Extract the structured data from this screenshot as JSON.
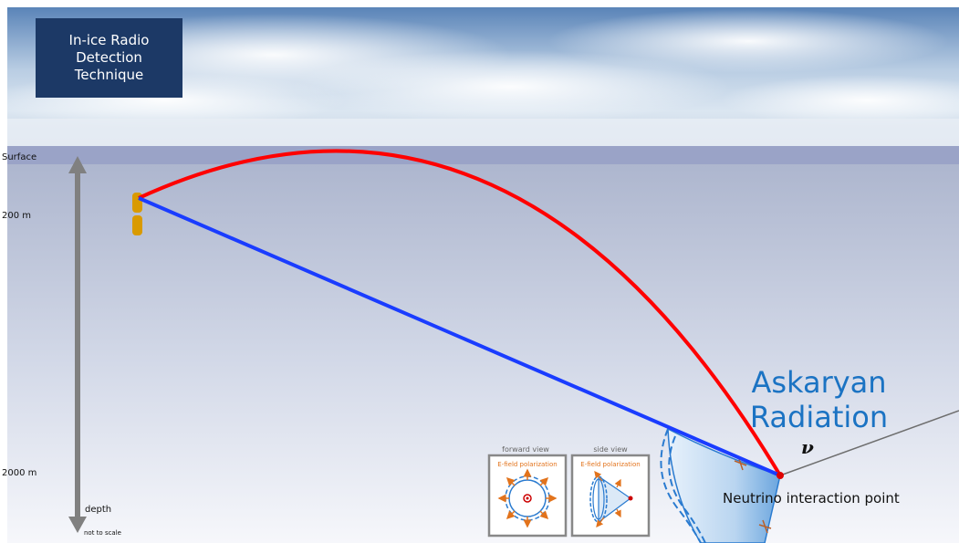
{
  "title": "In-ice Radio Detection Technique",
  "depth_axis": {
    "labels": [
      {
        "text": "Surface",
        "depth_m": 0
      },
      {
        "text": "200 m",
        "depth_m": 200
      },
      {
        "text": "2000 m",
        "depth_m": 2000
      }
    ],
    "arrow_label": "depth",
    "scale_note": "not to scale"
  },
  "signal_paths": [
    {
      "name": "refracted",
      "color": "#ff0000"
    },
    {
      "name": "direct",
      "color": "#1a3cff"
    }
  ],
  "radiation_label": "Askaryan Radiation",
  "neutrino_symbol": "ν",
  "interaction_label": "Neutrino interaction point",
  "insets": {
    "forward": {
      "caption": "forward view",
      "sub": "E-field polarization"
    },
    "side": {
      "caption": "side view",
      "sub": "E-field polarization"
    }
  },
  "colors": {
    "title_bg": "#1c3966",
    "askaryan_text": "#1b73c3",
    "polarization_arrows": "#e2731c",
    "antenna": "#d99a00",
    "surface_band": "#9aa3c7"
  }
}
